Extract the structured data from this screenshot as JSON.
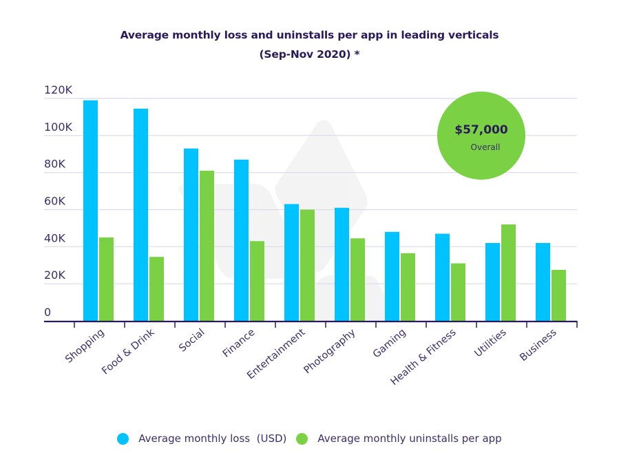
{
  "chart_data": {
    "type": "bar",
    "title": "Average monthly loss and uninstalls per app in leading verticals",
    "subtitle": "(Sep-Nov 2020) *",
    "xlabel": "",
    "ylabel": "",
    "ylim": [
      0,
      120000
    ],
    "yticks": [
      0,
      20000,
      40000,
      60000,
      80000,
      100000,
      120000
    ],
    "ytick_labels": [
      "0",
      "20K",
      "40K",
      "60K",
      "80K",
      "100K",
      "120K"
    ],
    "grid": true,
    "categories": [
      "Shopping",
      "Food & Drink",
      "Social",
      "Finance",
      "Entertainment",
      "Photography",
      "Gaming",
      "Health & Fitness",
      "Utilities",
      "Business"
    ],
    "series": [
      {
        "name": "Average monthly loss  (USD)",
        "color": "#00c2ff",
        "values": [
          119000,
          114500,
          93000,
          87000,
          63000,
          61000,
          48000,
          47000,
          42000,
          42000
        ]
      },
      {
        "name": "Average monthly uninstalls per app",
        "color": "#7bd144",
        "values": [
          45000,
          34500,
          81000,
          43000,
          60000,
          44500,
          36500,
          31000,
          52000,
          27500
        ]
      }
    ],
    "legend_position": "bottom",
    "annotation": {
      "value": "$57,000",
      "label": "Overall",
      "color": "#7bd144",
      "position": "top-right"
    }
  }
}
